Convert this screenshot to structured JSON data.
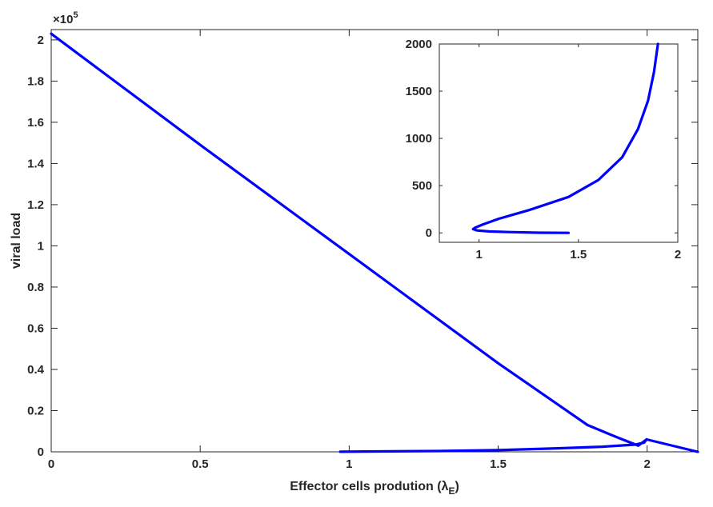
{
  "chart_data": [
    {
      "type": "line",
      "panel": "main",
      "xlabel_main": "Effector cells prodution (λ",
      "xlabel_sub": "E",
      "xlabel_close": ")",
      "ylabel": "viral load",
      "exponent_base": "×10",
      "exponent_power": "5",
      "xlim": [
        0,
        2.17
      ],
      "ylim": [
        0,
        2.05
      ],
      "ylim_units_note": "",
      "x_ticks": [
        0,
        0.5,
        1,
        1.5,
        2
      ],
      "x_tick_labels": [
        "0",
        "0.5",
        "1",
        "1.5",
        "2"
      ],
      "y_ticks": [
        0,
        0.2,
        0.4,
        0.6,
        0.8,
        1,
        1.2,
        1.4,
        1.6,
        1.8,
        2
      ],
      "y_tick_labels": [
        "0",
        "0.2",
        "0.4",
        "0.6",
        "0.8",
        "1",
        "1.2",
        "1.4",
        "1.6",
        "1.8",
        "2"
      ],
      "grid": false,
      "line_color": "#0000ff",
      "series": [
        {
          "x": [
            0,
            0.5,
            1,
            1.5,
            1.8,
            1.9,
            1.97,
            1.998,
            1.99,
            1.96,
            1.85,
            1.7,
            1.5,
            1.3,
            1.1,
            0.97
          ],
          "y": [
            2.03,
            1.49,
            0.96,
            0.43,
            0.13,
            0.07,
            0.03,
            0.06,
            0.045,
            0.035,
            0.025,
            0.017,
            0.008,
            0.004,
            0.002,
            0.0003
          ]
        },
        {
          "x": [
            1.998,
            2.17
          ],
          "y": [
            0.06,
            0.0
          ]
        }
      ]
    },
    {
      "type": "line",
      "panel": "inset",
      "xlim": [
        0.8,
        2
      ],
      "ylim": [
        -100,
        2000
      ],
      "x_ticks": [
        1,
        1.5,
        2
      ],
      "x_tick_labels": [
        "1",
        "1.5",
        "2"
      ],
      "y_ticks": [
        0,
        500,
        1000,
        1500,
        2000
      ],
      "y_tick_labels": [
        "0",
        "500",
        "1000",
        "1500",
        "2000"
      ],
      "grid": false,
      "line_color": "#0000ff",
      "series": [
        {
          "x": [
            1.45,
            1.3,
            1.15,
            1.05,
            0.99,
            0.97,
            0.98,
            1.02,
            1.1,
            1.25,
            1.45,
            1.6,
            1.72,
            1.8,
            1.85,
            1.88,
            1.9
          ],
          "y": [
            0,
            2,
            8,
            15,
            25,
            40,
            55,
            90,
            150,
            240,
            380,
            560,
            800,
            1100,
            1400,
            1700,
            2000
          ]
        }
      ]
    }
  ]
}
